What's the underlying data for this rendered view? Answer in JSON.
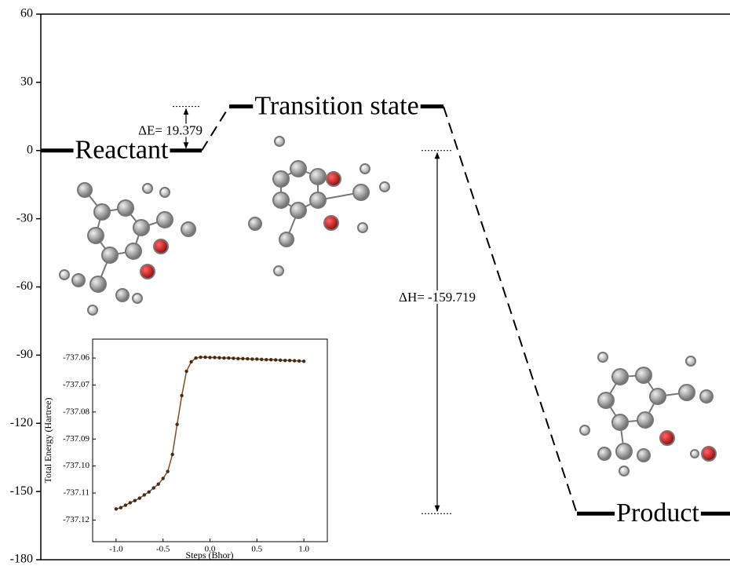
{
  "chart_data": [
    {
      "type": "energy_profile",
      "ylim": [
        -180,
        60
      ],
      "yticks": [
        -180,
        -150,
        -120,
        -90,
        -60,
        -30,
        0,
        30,
        60
      ],
      "levels": [
        {
          "name": "Reactant",
          "energy": 0
        },
        {
          "name": "Transition state",
          "energy": 19.379
        },
        {
          "name": "Product",
          "energy": -159.719
        }
      ],
      "annotations": [
        "ΔE= 19.379",
        "ΔH= -159.719"
      ],
      "color": "#000000"
    },
    {
      "type": "line",
      "xlabel": "Steps (Bhor)",
      "ylabel": "Total Energy (Hartree)",
      "xlim": [
        -1.25,
        1.25
      ],
      "ylim": [
        -737.128,
        -737.053
      ],
      "xticks": [
        {
          "value": -1,
          "label": "-1.0"
        },
        -0.5,
        {
          "value": 0,
          "label": "0.0"
        },
        0.5,
        {
          "value": 1,
          "label": "1.0"
        }
      ],
      "yticks": [
        -737.06,
        -737.07,
        -737.08,
        -737.09,
        {
          "value": -737.1,
          "label": "-737.10"
        },
        -737.11,
        -737.12
      ],
      "x": [
        -1,
        -0.95,
        -0.9,
        -0.85,
        -0.8,
        -0.75,
        -0.7,
        -0.65,
        -0.6,
        -0.55,
        -0.5,
        -0.45,
        -0.4,
        -0.35,
        -0.3,
        -0.25,
        -0.2,
        -0.15,
        -0.1,
        -0.05,
        0,
        0.05,
        0.1,
        0.15,
        0.2,
        0.25,
        0.3,
        0.35,
        0.4,
        0.45,
        0.5,
        0.55,
        0.6,
        0.65,
        0.7,
        0.75,
        0.8,
        0.85,
        0.9,
        0.95,
        1
      ],
      "values": [
        -737.1159,
        -737.1154,
        -737.1145,
        -737.1136,
        -737.1128,
        -737.1119,
        -737.1107,
        -737.1096,
        -737.1081,
        -737.1067,
        -737.1046,
        -737.102,
        -737.0957,
        -737.0846,
        -737.0739,
        -737.0649,
        -737.0614,
        -737.06,
        -737.0597,
        -737.0597,
        -737.0598,
        -737.0598,
        -737.0599,
        -737.06,
        -737.06,
        -737.0601,
        -737.0602,
        -737.0602,
        -737.0603,
        -737.0604,
        -737.0604,
        -737.0605,
        -737.0606,
        -737.0606,
        -737.0607,
        -737.0608,
        -737.0609,
        -737.0609,
        -737.061,
        -737.0611,
        -737.0612
      ],
      "color": "#8b4a1c"
    }
  ]
}
